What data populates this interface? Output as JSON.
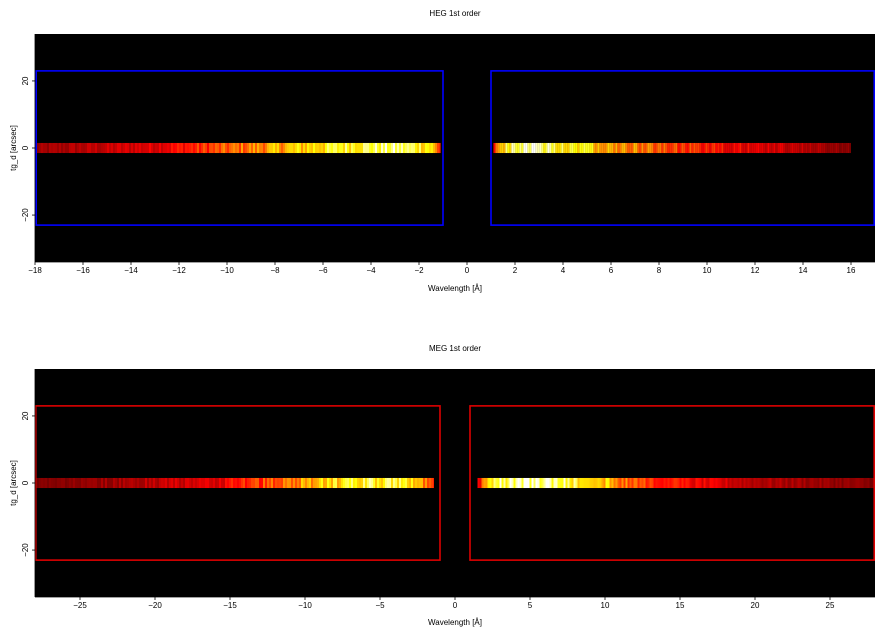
{
  "chart_data": [
    {
      "type": "heatmap",
      "title": "HEG 1st order",
      "xlabel": "Wavelength [Å]",
      "ylabel": "tg_d [arcsec]",
      "xlim": [
        -18,
        17
      ],
      "ylim": [
        -34,
        34
      ],
      "x_ticks": [
        -18,
        -16,
        -14,
        -12,
        -10,
        -8,
        -6,
        -4,
        -2,
        0,
        2,
        4,
        6,
        8,
        10,
        12,
        14,
        16
      ],
      "y_ticks": [
        -20,
        0,
        20
      ],
      "background": "#000000",
      "regions": [
        {
          "x0": -17.95,
          "x1": -1.0,
          "y0": -23,
          "y1": 23,
          "color": "#0000ff"
        },
        {
          "x0": 1.0,
          "x1": 17.0,
          "y0": -23,
          "y1": 23,
          "color": "#0000ff"
        }
      ],
      "stripes": [
        {
          "x0": -18.0,
          "x1": -1.1,
          "y": 0,
          "half_height": 1.5,
          "profile": [
            [
              -18.0,
              0.25
            ],
            [
              -16.0,
              0.3
            ],
            [
              -13.0,
              0.38
            ],
            [
              -10.0,
              0.55
            ],
            [
              -7.0,
              0.72
            ],
            [
              -5.0,
              0.85
            ],
            [
              -3.0,
              0.92
            ],
            [
              -1.6,
              0.8
            ],
            [
              -1.1,
              0.45
            ]
          ]
        },
        {
          "x0": 1.1,
          "x1": 16.0,
          "y": 0,
          "half_height": 1.5,
          "profile": [
            [
              1.1,
              0.45
            ],
            [
              1.6,
              0.85
            ],
            [
              2.5,
              0.97
            ],
            [
              3.5,
              0.9
            ],
            [
              6.0,
              0.68
            ],
            [
              9.0,
              0.5
            ],
            [
              12.0,
              0.38
            ],
            [
              14.5,
              0.3
            ],
            [
              16.0,
              0.22
            ]
          ]
        }
      ]
    },
    {
      "type": "heatmap",
      "title": "MEG 1st order",
      "xlabel": "Wavelength [Å]",
      "ylabel": "tg_d [arcsec]",
      "xlim": [
        -28,
        28
      ],
      "ylim": [
        -34,
        34
      ],
      "x_ticks": [
        -25,
        -20,
        -15,
        -10,
        -5,
        0,
        5,
        10,
        15,
        20,
        25
      ],
      "y_ticks": [
        -20,
        0,
        20
      ],
      "background": "#000000",
      "regions": [
        {
          "x0": -27.95,
          "x1": -1.0,
          "y0": -23,
          "y1": 23,
          "color": "#dd0000"
        },
        {
          "x0": 1.0,
          "x1": 28.0,
          "y0": -23,
          "y1": 23,
          "color": "#dd0000"
        }
      ],
      "stripes": [
        {
          "x0": -28.0,
          "x1": -1.4,
          "y": 0,
          "half_height": 1.5,
          "profile": [
            [
              -28.0,
              0.2
            ],
            [
              -22.0,
              0.28
            ],
            [
              -16.0,
              0.38
            ],
            [
              -12.0,
              0.55
            ],
            [
              -9.0,
              0.72
            ],
            [
              -6.0,
              0.86
            ],
            [
              -3.5,
              0.8
            ],
            [
              -2.0,
              0.6
            ],
            [
              -1.4,
              0.4
            ]
          ]
        },
        {
          "x0": 1.5,
          "x1": 28.0,
          "y": 0,
          "half_height": 1.5,
          "profile": [
            [
              1.5,
              0.4
            ],
            [
              2.5,
              0.88
            ],
            [
              4.0,
              0.95
            ],
            [
              6.0,
              0.97
            ],
            [
              8.0,
              0.85
            ],
            [
              11.0,
              0.62
            ],
            [
              15.0,
              0.42
            ],
            [
              20.0,
              0.3
            ],
            [
              28.0,
              0.22
            ]
          ]
        }
      ]
    }
  ]
}
